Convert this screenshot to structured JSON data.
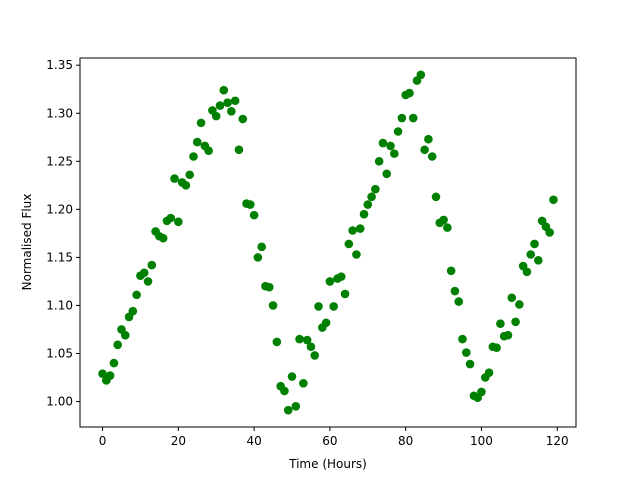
{
  "chart_data": {
    "type": "scatter",
    "xlabel": "Time (Hours)",
    "ylabel": "Normalised Flux",
    "color": "#008000",
    "x": [
      0,
      1,
      2,
      3,
      4,
      5,
      6,
      7,
      8,
      9,
      10,
      11,
      12,
      13,
      14,
      15,
      16,
      17,
      18,
      19,
      20,
      21,
      22,
      23,
      24,
      25,
      26,
      27,
      28,
      29,
      30,
      31,
      32,
      33,
      34,
      35,
      36,
      37,
      38,
      39,
      40,
      41,
      42,
      43,
      44,
      45,
      46,
      47,
      48,
      49,
      50,
      51,
      52,
      53,
      54,
      55,
      56,
      57,
      58,
      59,
      60,
      61,
      62,
      63,
      64,
      65,
      66,
      67,
      68,
      69,
      70,
      71,
      72,
      73,
      74,
      75,
      76,
      77,
      78,
      79,
      80,
      81,
      82,
      83,
      84,
      85,
      86,
      87,
      88,
      89,
      90,
      91,
      92,
      93,
      94,
      95,
      96,
      97,
      98,
      99,
      100,
      101,
      102,
      103,
      104,
      105,
      106,
      107,
      108,
      109,
      110,
      111,
      112,
      113,
      114,
      115,
      116,
      117,
      118,
      119
    ],
    "values": [
      1.029,
      1.022,
      1.027,
      1.04,
      1.059,
      1.075,
      1.069,
      1.088,
      1.094,
      1.111,
      1.131,
      1.134,
      1.125,
      1.142,
      1.177,
      1.172,
      1.17,
      1.188,
      1.191,
      1.232,
      1.187,
      1.228,
      1.225,
      1.236,
      1.255,
      1.27,
      1.29,
      1.266,
      1.261,
      1.303,
      1.297,
      1.308,
      1.324,
      1.311,
      1.302,
      1.313,
      1.262,
      1.294,
      1.206,
      1.205,
      1.194,
      1.15,
      1.161,
      1.12,
      1.119,
      1.1,
      1.062,
      1.016,
      1.011,
      0.991,
      1.026,
      0.995,
      1.065,
      1.019,
      1.064,
      1.057,
      1.048,
      1.099,
      1.077,
      1.082,
      1.125,
      1.099,
      1.128,
      1.13,
      1.112,
      1.164,
      1.178,
      1.153,
      1.18,
      1.195,
      1.205,
      1.213,
      1.221,
      1.25,
      1.269,
      1.237,
      1.266,
      1.258,
      1.281,
      1.295,
      1.319,
      1.321,
      1.295,
      1.334,
      1.34,
      1.262,
      1.273,
      1.255,
      1.213,
      1.186,
      1.189,
      1.181,
      1.136,
      1.115,
      1.104,
      1.065,
      1.051,
      1.039,
      1.006,
      1.004,
      1.01,
      1.025,
      1.03,
      1.057,
      1.056,
      1.081,
      1.068,
      1.069,
      1.108,
      1.083,
      1.101,
      1.141,
      1.135,
      1.153,
      1.164,
      1.147,
      1.188,
      1.182,
      1.176,
      1.21
    ],
    "xlim": [
      -5.95,
      124.95
    ],
    "xticks": [
      0,
      20,
      40,
      60,
      80,
      100,
      120
    ],
    "ylim": [
      0.9735,
      1.3575
    ],
    "yticks": [
      {
        "value": 1,
        "label": "1.00"
      },
      1.05,
      {
        "value": 1.1,
        "label": "1.10"
      },
      1.15,
      {
        "value": 1.2,
        "label": "1.20"
      },
      1.25,
      {
        "value": 1.3,
        "label": "1.30"
      },
      1.35
    ]
  }
}
